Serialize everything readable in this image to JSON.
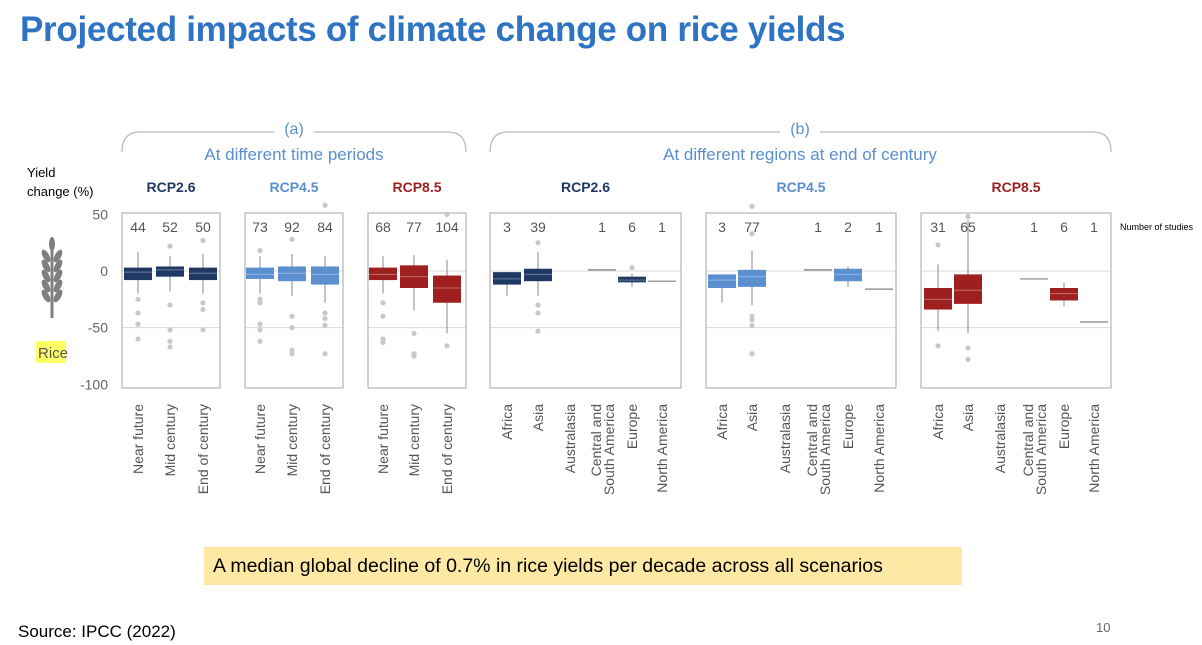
{
  "title": "Projected impacts of climate change on rice yields",
  "callout": "A median global decline of 0.7% in rice yields per decade across all scenarios",
  "source": "Source: IPCC (2022)",
  "page_number": "10",
  "crop_label": "Rice",
  "icon": "wheat-stalk-icon",
  "colors": {
    "title": "#2e73c4",
    "rcp26": "#1f3864",
    "rcp45": "#5b8fd0",
    "rcp85": "#9e1f1f",
    "outlier": "#c8c8c8",
    "bracket": "#b9b9b9",
    "header_blue": "#5b8fd0",
    "callout_bg": "#fde9a3",
    "rice_label_bg": "#ffff66"
  },
  "chart_data": {
    "type": "box",
    "ylabel": "Yield\nchange (%)",
    "ylim": [
      -100,
      55
    ],
    "yticks": [
      "50",
      "0",
      "-50",
      "-100"
    ],
    "gridlines_at": [
      0,
      -50
    ],
    "number_of_studies_label": "Number of studies",
    "groups": [
      {
        "letter": "(a)",
        "heading": "At different time periods",
        "panels": [
          {
            "scenario": "RCP2.6",
            "color_key": "rcp26",
            "categories": [
              "Near future",
              "Mid century",
              "End of century"
            ],
            "studies": [
              "44",
              "52",
              "50"
            ],
            "boxes": [
              {
                "q1": -8,
                "median": -1,
                "q3": 3,
                "whisker_low": -20,
                "whisker_high": 17,
                "outliers": [
                  -25,
                  -37,
                  -47,
                  -60
                ]
              },
              {
                "q1": -5,
                "median": 1,
                "q3": 4,
                "whisker_low": -18,
                "whisker_high": 13,
                "outliers": [
                  22,
                  -30,
                  -52,
                  -62,
                  -67
                ]
              },
              {
                "q1": -8,
                "median": -2,
                "q3": 3,
                "whisker_low": -20,
                "whisker_high": 15,
                "outliers": [
                  27,
                  -28,
                  -34,
                  -52
                ]
              }
            ]
          },
          {
            "scenario": "RCP4.5",
            "color_key": "rcp45",
            "categories": [
              "Near future",
              "Mid century",
              "End of century"
            ],
            "studies": [
              "73",
              "92",
              "84"
            ],
            "boxes": [
              {
                "q1": -7,
                "median": -3,
                "q3": 3,
                "whisker_low": -20,
                "whisker_high": 13,
                "outliers": [
                  18,
                  -25,
                  -28,
                  -47,
                  -52,
                  -62
                ]
              },
              {
                "q1": -9,
                "median": -2,
                "q3": 4,
                "whisker_low": -22,
                "whisker_high": 15,
                "outliers": [
                  28,
                  -40,
                  -50,
                  -70,
                  -73
                ]
              },
              {
                "q1": -12,
                "median": -3,
                "q3": 4,
                "whisker_low": -28,
                "whisker_high": 13,
                "outliers": [
                  58,
                  -37,
                  -42,
                  -48,
                  -73
                ]
              }
            ]
          },
          {
            "scenario": "RCP8.5",
            "color_key": "rcp85",
            "categories": [
              "Near future",
              "Mid century",
              "End of century"
            ],
            "studies": [
              "68",
              "77",
              "104"
            ],
            "boxes": [
              {
                "q1": -8,
                "median": -3,
                "q3": 3,
                "whisker_low": -20,
                "whisker_high": 13,
                "outliers": [
                  -28,
                  -40,
                  -60,
                  -63
                ]
              },
              {
                "q1": -15,
                "median": -5,
                "q3": 5,
                "whisker_low": -35,
                "whisker_high": 14,
                "outliers": [
                  -55,
                  -73,
                  -75
                ]
              },
              {
                "q1": -28,
                "median": -15,
                "q3": -4,
                "whisker_low": -55,
                "whisker_high": 10,
                "outliers": [
                  50,
                  -66
                ]
              }
            ]
          }
        ]
      },
      {
        "letter": "(b)",
        "heading": "At different regions at end of century",
        "panels": [
          {
            "scenario": "RCP2.6",
            "color_key": "rcp26",
            "categories": [
              "Africa",
              "Asia",
              "Australasia",
              "Central and\nSouth America",
              "Europe",
              "North America"
            ],
            "studies": [
              "3",
              "39",
              "",
              "1",
              "6",
              "1"
            ],
            "boxes": [
              {
                "q1": -12,
                "median": -7,
                "q3": -1,
                "whisker_low": -22,
                "whisker_high": -1,
                "outliers": []
              },
              {
                "q1": -9,
                "median": -3,
                "q3": 2,
                "whisker_low": -22,
                "whisker_high": 17,
                "outliers": [
                  25,
                  -30,
                  -37,
                  -53
                ]
              },
              null,
              {
                "line": 1
              },
              {
                "q1": -10,
                "median": -8,
                "q3": -5,
                "whisker_low": -14,
                "whisker_high": -2,
                "outliers": [
                  3
                ]
              },
              {
                "line": -9
              }
            ]
          },
          {
            "scenario": "RCP4.5",
            "color_key": "rcp45",
            "categories": [
              "Africa",
              "Asia",
              "Australasia",
              "Central and\nSouth America",
              "Europe",
              "North America"
            ],
            "studies": [
              "3",
              "77",
              "",
              "1",
              "2",
              "1"
            ],
            "boxes": [
              {
                "q1": -15,
                "median": -8,
                "q3": -3,
                "whisker_low": -28,
                "whisker_high": -3,
                "outliers": []
              },
              {
                "q1": -14,
                "median": -5,
                "q3": 1,
                "whisker_low": -30,
                "whisker_high": 18,
                "outliers": [
                  57,
                  33,
                  -40,
                  -43,
                  -48,
                  -73
                ]
              },
              null,
              {
                "line": 1
              },
              {
                "q1": -9,
                "median": -3,
                "q3": 2,
                "whisker_low": -14,
                "whisker_high": 4,
                "outliers": []
              },
              {
                "line": -16
              }
            ]
          },
          {
            "scenario": "RCP8.5",
            "color_key": "rcp85",
            "categories": [
              "Africa",
              "Asia",
              "Australasia",
              "Central and\nSouth America",
              "Europe",
              "North America"
            ],
            "studies": [
              "31",
              "65",
              "",
              "1",
              "6",
              "1"
            ],
            "boxes": [
              {
                "q1": -34,
                "median": -25,
                "q3": -15,
                "whisker_low": -53,
                "whisker_high": 6,
                "outliers": [
                  23,
                  -66
                ]
              },
              {
                "q1": -29,
                "median": -17,
                "q3": -3,
                "whisker_low": -55,
                "whisker_high": 45,
                "outliers": [
                  48,
                  -68,
                  -78
                ]
              },
              null,
              {
                "line": -7
              },
              {
                "q1": -26,
                "median": -20,
                "q3": -15,
                "whisker_low": -31,
                "whisker_high": -10,
                "outliers": []
              },
              {
                "line": -45
              }
            ]
          }
        ]
      }
    ]
  }
}
